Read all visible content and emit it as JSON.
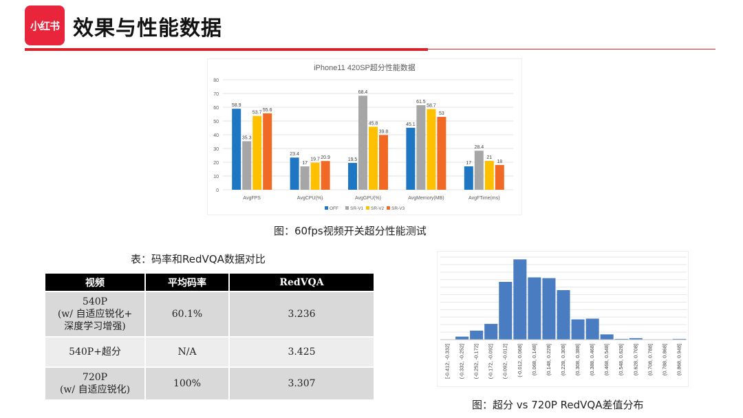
{
  "header": {
    "logo_text": "小红书",
    "title": "效果与性能数据"
  },
  "bar_caption": "图：60fps视频开关超分性能测试",
  "table_caption": "表：码率和RedVQA数据对比",
  "hist_caption": "图：超分 vs 720P RedVQA差值分布",
  "table": {
    "headers": [
      "视频",
      "平均码率",
      "RedVQA"
    ],
    "rows": [
      {
        "video": [
          "540P",
          "(w/ 自适应锐化+",
          "深度学习增强)"
        ],
        "bitrate": "60.1%",
        "vqa": "3.236"
      },
      {
        "video": [
          "540P+超分"
        ],
        "bitrate": "N/A",
        "vqa": "3.425"
      },
      {
        "video": [
          "720P",
          "(w/ 自适应锐化)"
        ],
        "bitrate": "100%",
        "vqa": "3.307"
      }
    ]
  },
  "chart_data": [
    {
      "type": "bar",
      "title": "iPhone11 420SP超分性能数据",
      "categories": [
        "AvgFPS",
        "AvgCPU(%)",
        "AvgGPU(%)",
        "AvgMemory(MB)",
        "AvgFTime(ms)"
      ],
      "series": [
        {
          "name": "OFF",
          "color": "#1f77c4",
          "values": [
            58.9,
            23.4,
            19.5,
            45.1,
            17
          ]
        },
        {
          "name": "SR-V1",
          "color": "#a6a6a6",
          "values": [
            35.3,
            17,
            68.4,
            61.5,
            28.4
          ]
        },
        {
          "name": "SR-V2",
          "color": "#ffc000",
          "values": [
            53.7,
            19.7,
            45.8,
            58.7,
            21
          ]
        },
        {
          "name": "SR-V3",
          "color": "#f06a25",
          "values": [
            55.6,
            20.9,
            39.8,
            53,
            18
          ]
        }
      ],
      "ylim": [
        0,
        80
      ],
      "yticks": [
        0,
        10,
        20,
        30,
        40,
        50,
        60,
        70,
        80
      ],
      "legend": "bottom",
      "grid": true
    },
    {
      "type": "bar",
      "categories": [
        "[-0.412, -0.332]",
        "(-0.332, -0.252]",
        "(-0.252, -0.172]",
        "(-0.172, -0.092]",
        "(-0.092, -0.012]",
        "(-0.012, 0.068]",
        "(0.068, 0.148]",
        "(0.148, 0.228]",
        "(0.228, 0.308]",
        "(0.308, 0.388]",
        "(0.388, 0.468]",
        "(0.468, 0.548]",
        "(0.548, 0.628]",
        "(0.628, 0.708]",
        "(0.708, 0.788]",
        "(0.788, 0.868]",
        "(0.868, 0.948]"
      ],
      "values": [
        0,
        4,
        12,
        21,
        77,
        107,
        83,
        82,
        66,
        27,
        28,
        7,
        1,
        2,
        0,
        0,
        1
      ],
      "color": "#4a7cc2",
      "ylim": [
        0,
        110
      ],
      "grid": true
    }
  ]
}
